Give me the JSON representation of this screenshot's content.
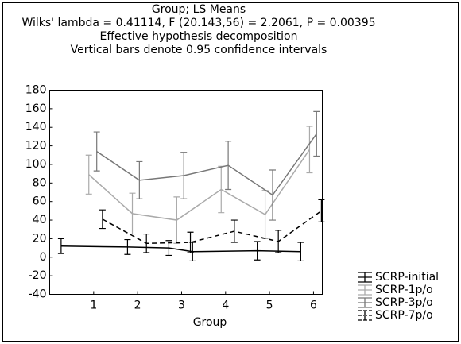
{
  "chart_data": {
    "type": "line",
    "title_lines": [
      "Group; LS Means",
      "Wilks' lambda = 0.41114, F (20.143,56) = 2.2061, P = 0.00395",
      "Effective hypothesis decomposition",
      "Vertical bars denote 0.95 confidence intervals"
    ],
    "xlabel": "Group",
    "xlim": [
      0,
      6.2
    ],
    "xticks": [
      1,
      2,
      3,
      4,
      5,
      6
    ],
    "ylim": [
      -40,
      180
    ],
    "yticks": [
      -40,
      -20,
      0,
      20,
      40,
      60,
      80,
      100,
      120,
      140,
      160,
      180
    ],
    "legend": "lower right",
    "series": [
      {
        "name": "SCRP-initial",
        "color": "#000000",
        "dashed": false,
        "x": [
          0.26,
          1.77,
          2.71,
          3.25,
          4.72,
          5.71
        ],
        "values": [
          12,
          11,
          10,
          6,
          7,
          6
        ],
        "errors": [
          8,
          8,
          8,
          10,
          10,
          10
        ]
      },
      {
        "name": "SCRP-1p/o",
        "color": "#aaaaaa",
        "dashed": false,
        "x": [
          0.89,
          1.88,
          2.89,
          3.9,
          4.9,
          5.91
        ],
        "values": [
          89,
          47,
          40,
          73,
          46,
          116
        ],
        "errors": [
          21,
          22,
          25,
          25,
          26,
          25
        ]
      },
      {
        "name": "SCRP-3p/o",
        "color": "#777777",
        "dashed": false,
        "x": [
          1.07,
          2.04,
          3.05,
          4.06,
          5.07,
          6.07
        ],
        "values": [
          114,
          83,
          88,
          99,
          67,
          133
        ],
        "errors": [
          21,
          20,
          25,
          26,
          27,
          24
        ]
      },
      {
        "name": "SCRP-7p/o",
        "color": "#000000",
        "dashed": true,
        "x": [
          1.2,
          2.2,
          3.2,
          4.2,
          5.2,
          6.18
        ],
        "values": [
          41,
          15,
          16,
          28,
          17,
          50
        ],
        "errors": [
          10,
          10,
          11,
          12,
          12,
          12
        ]
      }
    ]
  }
}
